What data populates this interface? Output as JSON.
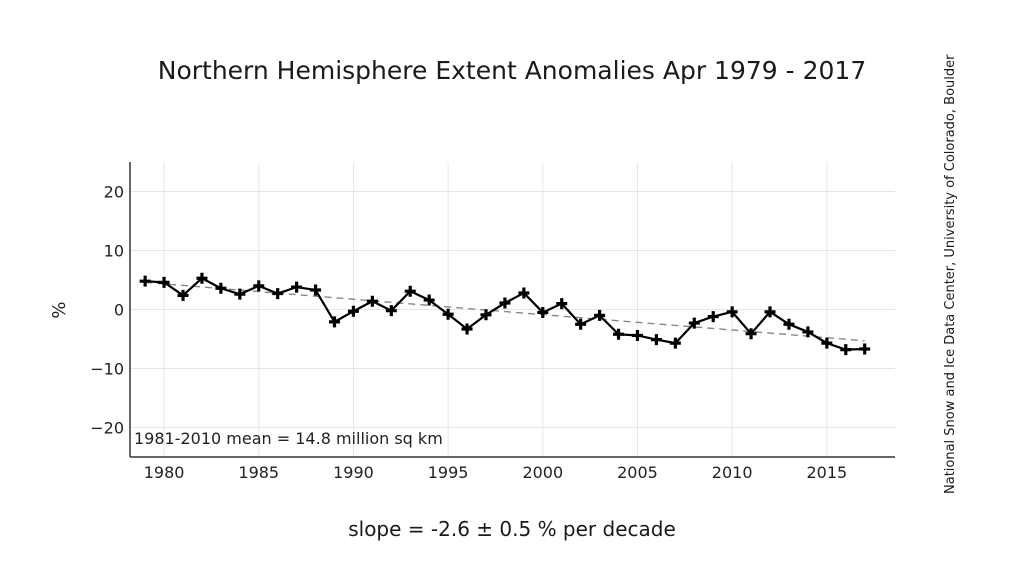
{
  "title": "Northern Hemisphere Extent Anomalies Apr 1979 - 2017",
  "footer": "slope = -2.6 ± 0.5 % per decade",
  "credit": "National Snow and Ice Data Center, University of Colorado, Boulder",
  "chart_data": {
    "type": "line",
    "ylabel": "%",
    "xlabel": "",
    "annotation": "1981-2010 mean = 14.8 million sq km",
    "xlim": [
      1978.2,
      2018.6
    ],
    "ylim": [
      -25,
      25
    ],
    "x_ticks": [
      1980,
      1985,
      1990,
      1995,
      2000,
      2005,
      2010,
      2015
    ],
    "y_ticks": [
      20,
      10,
      0,
      -10,
      -20
    ],
    "y_tick_labels": [
      "20",
      "10",
      "0",
      "−10",
      "−20"
    ],
    "grid": true,
    "series": [
      {
        "x": [
          1979,
          1980,
          1981,
          1982,
          1983,
          1984,
          1985,
          1986,
          1987,
          1988,
          1989,
          1990,
          1991,
          1992,
          1993,
          1994,
          1995,
          1996,
          1997,
          1998,
          1999,
          2000,
          2001,
          2002,
          2003,
          2004,
          2005,
          2006,
          2007,
          2008,
          2009,
          2010,
          2011,
          2012,
          2013,
          2014,
          2015,
          2016,
          2017
        ],
        "values": [
          4.8,
          4.6,
          2.4,
          5.3,
          3.6,
          2.6,
          4.0,
          2.7,
          3.8,
          3.3,
          -2.1,
          -0.3,
          1.4,
          -0.2,
          3.1,
          1.6,
          -0.8,
          -3.3,
          -0.9,
          1.1,
          2.8,
          -0.5,
          1.0,
          -2.5,
          -1.0,
          -4.2,
          -4.4,
          -5.1,
          -5.7,
          -2.3,
          -1.2,
          -0.4,
          -4.1,
          -0.4,
          -2.5,
          -3.8,
          -5.7,
          -6.8,
          -6.7
        ],
        "color": "#000000",
        "marker": "plus"
      },
      {
        "type": "trend",
        "x": [
          1979,
          2017
        ],
        "values": [
          4.6,
          -5.3
        ],
        "color": "#888888",
        "style": "dashed"
      }
    ]
  }
}
